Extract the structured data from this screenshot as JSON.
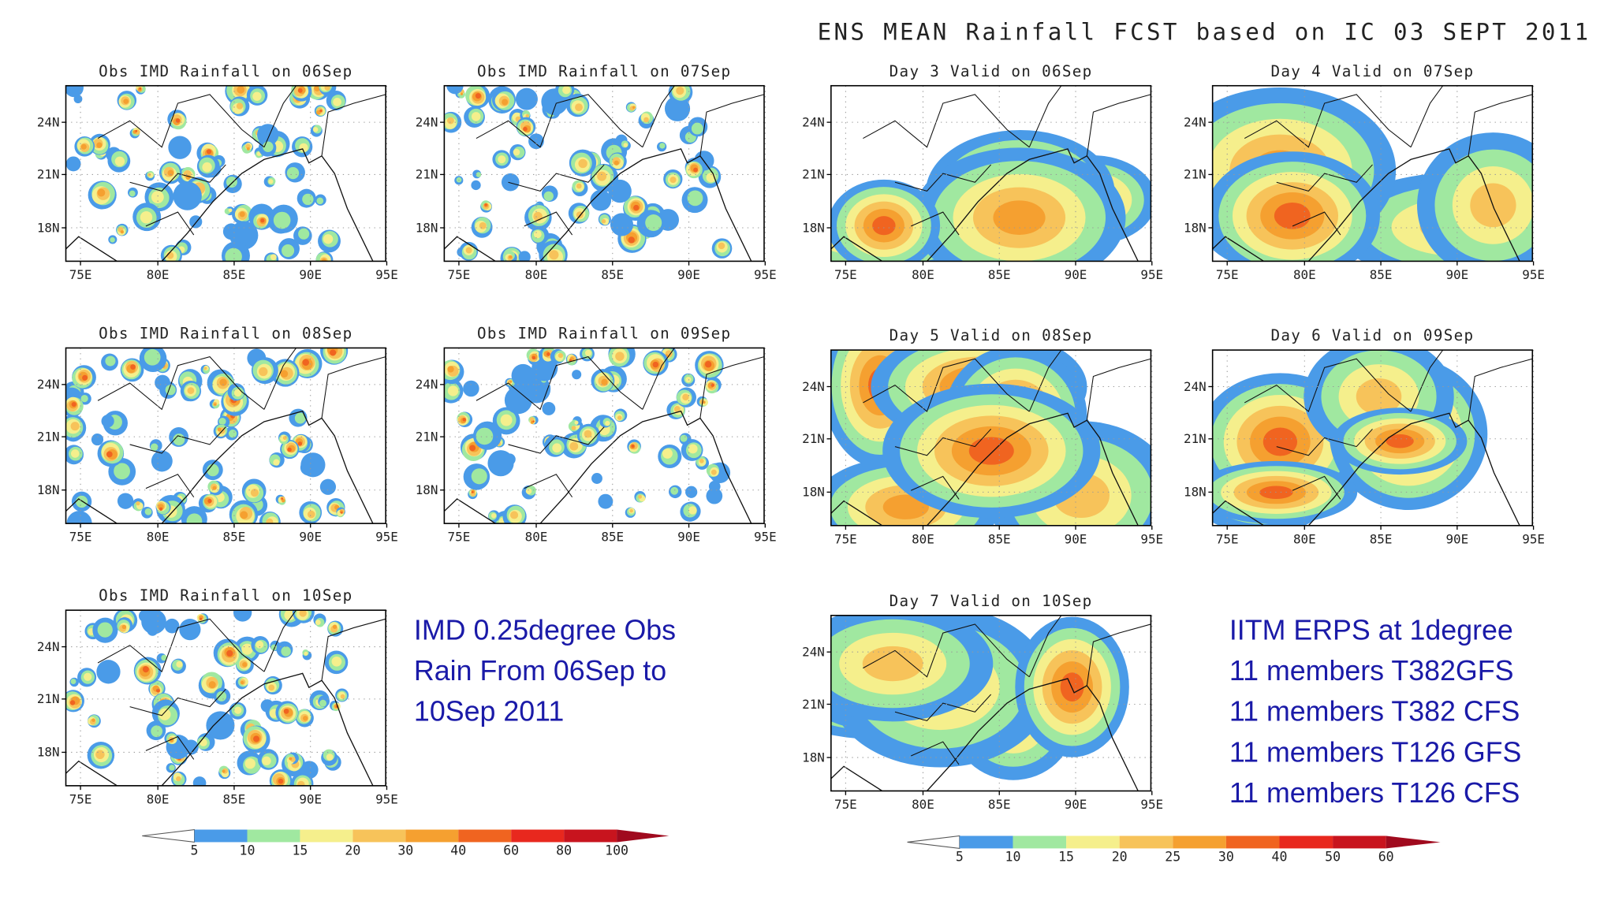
{
  "header": {
    "title": "ENS MEAN Rainfall FCST based on IC 03 SEPT 2011"
  },
  "axes": {
    "lat_labels": [
      "24N",
      "21N",
      "18N"
    ],
    "lon_labels": [
      "75E",
      "80E",
      "85E",
      "90E",
      "95E"
    ]
  },
  "panels": [
    {
      "title": "Obs IMD Rainfall on 06Sep",
      "kind": "obs"
    },
    {
      "title": "Obs IMD Rainfall on 07Sep",
      "kind": "obs"
    },
    {
      "title": "Day 3 Valid on 06Sep",
      "kind": "fcst"
    },
    {
      "title": "Day 4 Valid on 07Sep",
      "kind": "fcst"
    },
    {
      "title": "Obs IMD Rainfall on 08Sep",
      "kind": "obs"
    },
    {
      "title": "Obs IMD Rainfall on 09Sep",
      "kind": "obs"
    },
    {
      "title": "Day 5 Valid on 08Sep",
      "kind": "fcst"
    },
    {
      "title": "Day 6 Valid on 09Sep",
      "kind": "fcst"
    },
    {
      "title": "Obs IMD Rainfall on 10Sep",
      "kind": "obs"
    },
    {
      "title": "Day 7 Valid on 10Sep",
      "kind": "fcst"
    }
  ],
  "obs_note": {
    "lines": [
      "IMD 0.25degree Obs",
      "Rain From 06Sep to",
      "10Sep 2011"
    ]
  },
  "model_note": {
    "lines": [
      "IITM ERPS at 1degree",
      "11 members T382GFS",
      "11 members T382 CFS",
      "11 members T126 GFS",
      "11 members T126 CFS"
    ]
  },
  "colorbars": [
    {
      "labels": [
        5,
        10,
        15,
        20,
        30,
        40,
        60,
        80,
        100
      ]
    },
    {
      "labels": [
        5,
        10,
        15,
        20,
        25,
        30,
        40,
        50,
        60
      ]
    }
  ],
  "colors": [
    "#4a9be8",
    "#a0e8a0",
    "#f5ef8c",
    "#f7c35a",
    "#f5a030",
    "#f06420",
    "#e8281e",
    "#c8141e"
  ]
}
